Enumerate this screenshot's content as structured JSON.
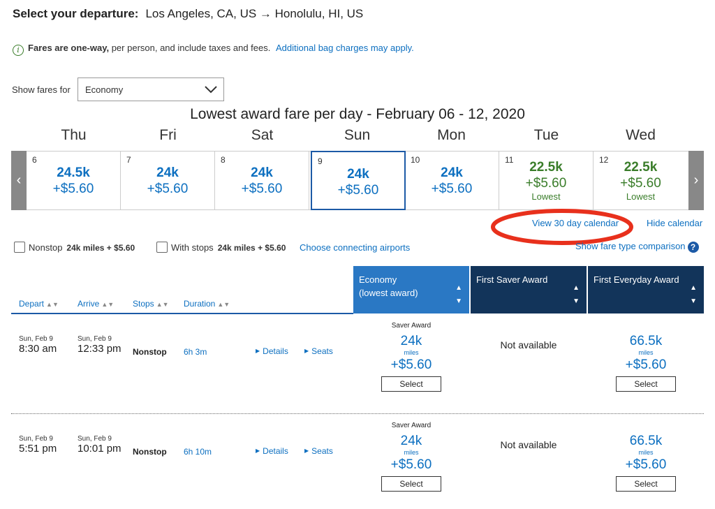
{
  "header": {
    "title_label": "Select your departure:",
    "route": "Los Angeles, CA, US → Honolulu, HI, US"
  },
  "info": {
    "bold": "Fares are one-way,",
    "text": " per person, and include taxes and fees.",
    "link": "Additional bag charges may apply."
  },
  "fares": {
    "label": "Show fares for",
    "selected": "Economy"
  },
  "calendar": {
    "title": "Lowest award fare per day - February 06 - 12, 2020",
    "days": [
      {
        "name": "Thu",
        "num": "6",
        "miles": "24.5k",
        "tax": "+$5.60",
        "lowest": ""
      },
      {
        "name": "Fri",
        "num": "7",
        "miles": "24k",
        "tax": "+$5.60",
        "lowest": ""
      },
      {
        "name": "Sat",
        "num": "8",
        "miles": "24k",
        "tax": "+$5.60",
        "lowest": ""
      },
      {
        "name": "Sun",
        "num": "9",
        "miles": "24k",
        "tax": "+$5.60",
        "lowest": ""
      },
      {
        "name": "Mon",
        "num": "10",
        "miles": "24k",
        "tax": "+$5.60",
        "lowest": ""
      },
      {
        "name": "Tue",
        "num": "11",
        "miles": "22.5k",
        "tax": "+$5.60",
        "lowest": "Lowest"
      },
      {
        "name": "Wed",
        "num": "12",
        "miles": "22.5k",
        "tax": "+$5.60",
        "lowest": "Lowest"
      }
    ],
    "view30": "View 30 day calendar",
    "hide": "Hide calendar"
  },
  "filters": {
    "nonstop_label": "Nonstop",
    "nonstop_value": "24k miles + $5.60",
    "stops_label": "With stops",
    "stops_value": "24k miles + $5.60",
    "connecting": "Choose connecting airports",
    "comparison": "Show fare type comparison"
  },
  "columns": {
    "depart": "Depart",
    "arrive": "Arrive",
    "stops": "Stops",
    "duration": "Duration"
  },
  "fare_types": [
    {
      "line1": "Economy",
      "line2": "(lowest award)",
      "color": "#2a78c4"
    },
    {
      "line1": "First Saver Award",
      "line2": "",
      "color": "#12345a"
    },
    {
      "line1": "First Everyday Award",
      "line2": "",
      "color": "#12345a"
    }
  ],
  "flights": [
    {
      "dep_date": "Sun, Feb 9",
      "dep_time": "8:30 am",
      "arr_date": "Sun, Feb 9",
      "arr_time": "12:33 pm",
      "stops": "Nonstop",
      "duration": "6h 3m",
      "details": "Details",
      "seats": "Seats",
      "economy": {
        "label": "Saver Award",
        "miles": "24k",
        "unit": "miles",
        "tax": "+$5.60",
        "btn": "Select"
      },
      "first_saver": "Not available",
      "first_everyday": {
        "miles": "66.5k",
        "unit": "miles",
        "tax": "+$5.60",
        "btn": "Select"
      }
    },
    {
      "dep_date": "Sun, Feb 9",
      "dep_time": "5:51 pm",
      "arr_date": "Sun, Feb 9",
      "arr_time": "10:01 pm",
      "stops": "Nonstop",
      "duration": "6h 10m",
      "details": "Details",
      "seats": "Seats",
      "economy": {
        "label": "Saver Award",
        "miles": "24k",
        "unit": "miles",
        "tax": "+$5.60",
        "btn": "Select"
      },
      "first_saver": "Not available",
      "first_everyday": {
        "miles": "66.5k",
        "unit": "miles",
        "tax": "+$5.60",
        "btn": "Select"
      }
    }
  ],
  "annotation": {
    "color": "#e8301c"
  }
}
